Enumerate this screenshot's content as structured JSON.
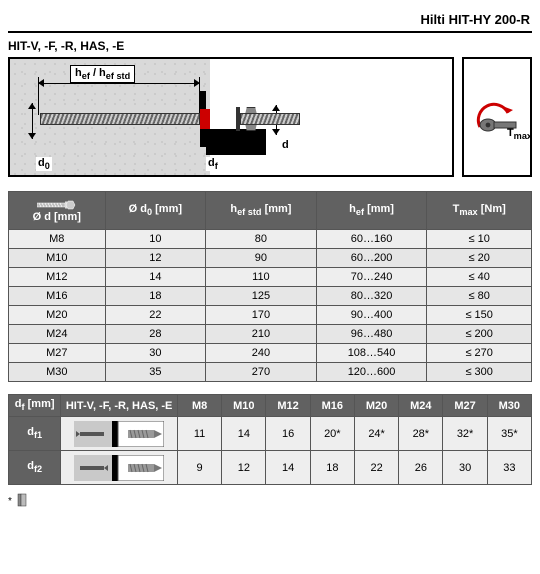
{
  "header_title": "Hilti HIT-HY 200-R",
  "subheader": "HIT-V, -F, -R, HAS, -E",
  "diagram": {
    "h_label": "h_ef / h_ef std",
    "d0_label": "d₀",
    "df_label": "d_f",
    "d_label": "d",
    "tmax_label": "T_max"
  },
  "table1": {
    "headers": [
      "Ø d [mm]",
      "Ø d₀ [mm]",
      "h_ef std [mm]",
      "h_ef [mm]",
      "T_max [Nm]"
    ],
    "rows": [
      [
        "M8",
        "10",
        "80",
        "60…160",
        "≤ 10"
      ],
      [
        "M10",
        "12",
        "90",
        "60…200",
        "≤ 20"
      ],
      [
        "M12",
        "14",
        "110",
        "70…240",
        "≤ 40"
      ],
      [
        "M16",
        "18",
        "125",
        "80…320",
        "≤ 80"
      ],
      [
        "M20",
        "22",
        "170",
        "90…400",
        "≤ 150"
      ],
      [
        "M24",
        "28",
        "210",
        "96…480",
        "≤ 200"
      ],
      [
        "M27",
        "30",
        "240",
        "108…540",
        "≤ 270"
      ],
      [
        "M30",
        "35",
        "270",
        "120…600",
        "≤ 300"
      ]
    ],
    "col_widths": [
      "96px",
      "100px",
      "110px",
      "110px",
      "104px"
    ],
    "header_bg": "#616161",
    "header_fg": "#ffffff",
    "row_odd_bg": "#eeeeee",
    "row_even_bg": "#e6e6e6",
    "border_color": "#555555",
    "fontsize": 11
  },
  "table2": {
    "corner": "d_f [mm]",
    "group_header": "HIT-V, -F, -R, HAS, -E",
    "size_headers": [
      "M8",
      "M10",
      "M12",
      "M16",
      "M20",
      "M24",
      "M27",
      "M30"
    ],
    "rows": [
      {
        "label": "d_f1",
        "vals": [
          "11",
          "14",
          "16",
          "20*",
          "24*",
          "28*",
          "32*",
          "35*"
        ]
      },
      {
        "label": "d_f2",
        "vals": [
          "9",
          "12",
          "14",
          "18",
          "22",
          "26",
          "30",
          "33"
        ]
      }
    ],
    "col_widths": {
      "label": "52px",
      "group": "116px",
      "size": "44px"
    }
  },
  "footnote_marker": "*",
  "colors": {
    "concrete": "#d9d9d9",
    "accent_red": "#cc0000",
    "dark": "#000000",
    "metal": "#888888"
  }
}
